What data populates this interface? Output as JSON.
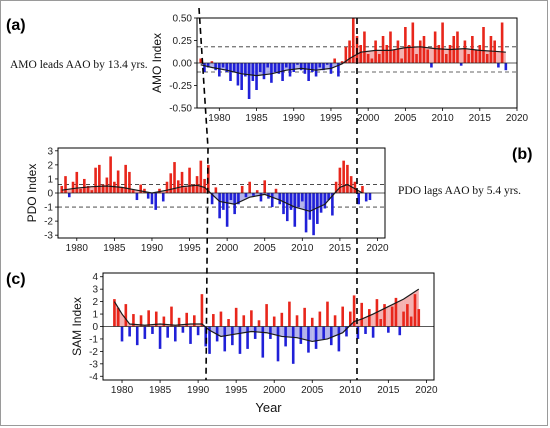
{
  "panels": {
    "a": "(a)",
    "b": "(b)",
    "c": "(c)"
  },
  "notes": {
    "amo_lead": "AMO leads AAO by 13.4 yrs.",
    "pdo_lag": "PDO lags AAO by 5.4 yrs."
  },
  "colors": {
    "positive": "#e8261b",
    "negative": "#2020d8",
    "positive_fill": "#f2a3a3",
    "negative_fill": "#a7a7e6",
    "smooth": "#1a1a1a"
  },
  "chart_data": [
    {
      "id": "amo",
      "type": "bar",
      "ylabel": "AMO Index",
      "xlabel": "",
      "xlim": [
        1977,
        2020
      ],
      "ylim": [
        -0.5,
        0.5
      ],
      "xticks": [
        1980,
        1985,
        1990,
        1995,
        2000,
        2005,
        2010,
        2015,
        2020
      ],
      "yticks": [
        -0.5,
        -0.25,
        0.0,
        0.25,
        0.5
      ],
      "ytick_labels": [
        "-0.50",
        "-0.25",
        "0.00",
        "0.25",
        "0.50"
      ],
      "thresholds": [
        0.18,
        -0.1
      ],
      "smoothed": {
        "x": [
          1977.5,
          1979,
          1981,
          1983,
          1985,
          1987,
          1989,
          1991,
          1993,
          1995,
          1996.5,
          1997.5,
          1999,
          2001,
          2003,
          2005,
          2007,
          2009,
          2011,
          2013,
          2015,
          2017,
          2018.5
        ],
        "y": [
          -0.02,
          -0.05,
          -0.08,
          -0.12,
          -0.14,
          -0.12,
          -0.08,
          -0.06,
          -0.08,
          -0.06,
          -0.01,
          0.05,
          0.12,
          0.14,
          0.14,
          0.17,
          0.18,
          0.16,
          0.15,
          0.16,
          0.14,
          0.13,
          0.12
        ]
      },
      "bars": {
        "x": [
          1977.5,
          1978,
          1978.5,
          1979,
          1979.5,
          1980,
          1980.5,
          1981,
          1981.5,
          1982,
          1982.5,
          1983,
          1983.5,
          1984,
          1984.5,
          1985,
          1985.5,
          1986,
          1986.5,
          1987,
          1987.5,
          1988,
          1988.5,
          1989,
          1989.5,
          1990,
          1990.5,
          1991,
          1991.5,
          1992,
          1992.5,
          1993,
          1993.5,
          1994,
          1994.5,
          1995,
          1995.5,
          1996,
          1996.5,
          1997,
          1997.5,
          1998,
          1998.5,
          1999,
          1999.5,
          2000,
          2000.5,
          2001,
          2001.5,
          2002,
          2002.5,
          2003,
          2003.5,
          2004,
          2004.5,
          2005,
          2005.5,
          2006,
          2006.5,
          2007,
          2007.5,
          2008,
          2008.5,
          2009,
          2009.5,
          2010,
          2010.5,
          2011,
          2011.5,
          2012,
          2012.5,
          2013,
          2013.5,
          2014,
          2014.5,
          2015,
          2015.5,
          2016,
          2016.5,
          2017,
          2017.5,
          2018,
          2018.5
        ],
        "y": [
          0.05,
          -0.1,
          -0.05,
          0.02,
          -0.08,
          -0.15,
          -0.05,
          -0.1,
          -0.2,
          -0.1,
          -0.25,
          -0.3,
          -0.15,
          -0.4,
          -0.2,
          -0.3,
          -0.1,
          -0.18,
          -0.05,
          -0.22,
          -0.1,
          -0.12,
          -0.2,
          -0.05,
          -0.15,
          -0.1,
          -0.02,
          -0.08,
          -0.12,
          -0.2,
          -0.1,
          -0.15,
          -0.05,
          -0.08,
          -0.02,
          -0.12,
          0.05,
          -0.15,
          0.02,
          0.18,
          0.25,
          0.5,
          0.3,
          0.2,
          0.35,
          0.1,
          0.05,
          0.25,
          0.1,
          0.3,
          0.2,
          0.35,
          0.15,
          0.25,
          0.05,
          0.4,
          0.2,
          0.45,
          0.1,
          0.25,
          0.3,
          0.15,
          -0.05,
          0.35,
          0.2,
          0.45,
          0.1,
          0.2,
          0.3,
          0.35,
          -0.03,
          0.25,
          0.1,
          0.3,
          0.15,
          0.2,
          0.4,
          0.1,
          0.3,
          0.25,
          -0.05,
          0.45,
          -0.08
        ]
      }
    },
    {
      "id": "pdo",
      "type": "bar",
      "ylabel": "PDO Index",
      "xlabel": "",
      "xlim": [
        1977.5,
        2021
      ],
      "ylim": [
        -3.2,
        3.2
      ],
      "xticks": [
        1980,
        1985,
        1990,
        1995,
        2000,
        2005,
        2010,
        2015,
        2020
      ],
      "yticks": [
        -3,
        -2,
        -1,
        0,
        1,
        2,
        3
      ],
      "ytick_labels": [
        "-3",
        "-2",
        "-1",
        "0",
        "1",
        "2",
        "3"
      ],
      "thresholds": [
        0.6,
        -1.0
      ],
      "smoothed": {
        "x": [
          1978,
          1980,
          1982,
          1984,
          1986,
          1988,
          1990,
          1992,
          1994,
          1996,
          1997,
          1998,
          1999,
          2001,
          2003,
          2005,
          2007,
          2009,
          2011,
          2013,
          2014,
          2015,
          2016,
          2017,
          2018
        ],
        "y": [
          0.2,
          0.35,
          0.45,
          0.5,
          0.4,
          0.2,
          0.0,
          0.2,
          0.45,
          0.55,
          0.4,
          -0.1,
          -0.6,
          -0.8,
          -0.3,
          -0.1,
          -0.5,
          -1.0,
          -1.3,
          -0.8,
          -0.2,
          0.4,
          0.6,
          0.3,
          0.0
        ]
      },
      "bars": {
        "x": [
          1978,
          1978.5,
          1979,
          1979.5,
          1980,
          1980.5,
          1981,
          1981.5,
          1982,
          1982.5,
          1983,
          1983.5,
          1984,
          1984.5,
          1985,
          1985.5,
          1986,
          1986.5,
          1987,
          1987.5,
          1988,
          1988.5,
          1989,
          1989.5,
          1990,
          1990.5,
          1991,
          1991.5,
          1992,
          1992.5,
          1993,
          1993.5,
          1994,
          1994.5,
          1995,
          1995.5,
          1996,
          1996.5,
          1997,
          1997.5,
          1998,
          1998.5,
          1999,
          1999.5,
          2000,
          2000.5,
          2001,
          2001.5,
          2002,
          2002.5,
          2003,
          2003.5,
          2004,
          2004.5,
          2005,
          2005.5,
          2006,
          2006.5,
          2007,
          2007.5,
          2008,
          2008.5,
          2009,
          2009.5,
          2010,
          2010.5,
          2011,
          2011.5,
          2012,
          2012.5,
          2013,
          2013.5,
          2014,
          2014.5,
          2015,
          2015.5,
          2016,
          2016.5,
          2017,
          2017.5,
          2018,
          2018.5,
          2019
        ],
        "y": [
          0.5,
          1.2,
          -0.3,
          0.8,
          1.5,
          0.3,
          1.0,
          0.5,
          0.2,
          1.8,
          2.0,
          0.6,
          1.1,
          2.6,
          0.8,
          1.6,
          0.4,
          2.0,
          1.5,
          0.2,
          -0.5,
          0.6,
          0.3,
          -0.4,
          -0.8,
          -1.2,
          0.3,
          -0.6,
          0.8,
          1.4,
          2.2,
          0.9,
          1.5,
          0.4,
          1.8,
          0.6,
          1.2,
          2.3,
          1.0,
          2.0,
          -0.8,
          0.4,
          -1.8,
          -1.2,
          -2.4,
          -0.5,
          -1.5,
          -0.8,
          0.5,
          -0.3,
          0.8,
          -0.2,
          0.2,
          -0.6,
          0.9,
          -0.4,
          -1.0,
          0.3,
          -0.8,
          -1.5,
          -2.0,
          -1.2,
          -2.4,
          -1.0,
          -0.6,
          -2.8,
          -1.9,
          -3.0,
          -2.2,
          -1.4,
          -1.1,
          -0.5,
          -1.6,
          0.8,
          1.8,
          2.3,
          2.0,
          1.2,
          0.8,
          -0.8,
          0.5,
          -0.6,
          -0.5
        ]
      }
    },
    {
      "id": "sam",
      "type": "bar",
      "ylabel": "SAM Index",
      "xlabel": "Year",
      "xlim": [
        1977.5,
        2021
      ],
      "ylim": [
        -4.3,
        4.3
      ],
      "xticks": [
        1980,
        1985,
        1990,
        1995,
        2000,
        2005,
        2010,
        2015,
        2020
      ],
      "yticks": [
        -4,
        -3,
        -2,
        -1,
        0,
        1,
        2,
        3,
        4
      ],
      "ytick_labels": [
        "-4",
        "-3",
        "-2",
        "-1",
        "0",
        "1",
        "2",
        "3",
        "4"
      ],
      "thresholds": [],
      "smoothed": {
        "x": [
          1979,
          1980,
          1981,
          1983,
          1985,
          1987,
          1989,
          1990.5,
          1991.5,
          1993,
          1995,
          1997,
          1999,
          2001,
          2003,
          2005,
          2007,
          2009,
          2010.5,
          2011.5,
          2013,
          2015,
          2017,
          2019
        ],
        "y": [
          2.0,
          1.0,
          0.2,
          0.1,
          0.2,
          0.1,
          0.2,
          0.2,
          -0.3,
          -0.8,
          -0.6,
          -0.4,
          -0.5,
          -0.8,
          -0.9,
          -1.2,
          -1.0,
          -0.5,
          0.4,
          0.6,
          1.0,
          1.6,
          2.2,
          3.0
        ]
      },
      "bars": {
        "x": [
          1979,
          1979.5,
          1980,
          1980.5,
          1981,
          1981.5,
          1982,
          1982.5,
          1983,
          1983.5,
          1984,
          1984.5,
          1985,
          1985.5,
          1986,
          1986.5,
          1987,
          1987.5,
          1988,
          1988.5,
          1989,
          1989.5,
          1990,
          1990.5,
          1991,
          1991.5,
          1992,
          1992.5,
          1993,
          1993.5,
          1994,
          1994.5,
          1995,
          1995.5,
          1996,
          1996.5,
          1997,
          1997.5,
          1998,
          1998.5,
          1999,
          1999.5,
          2000,
          2000.5,
          2001,
          2001.5,
          2002,
          2002.5,
          2003,
          2003.5,
          2004,
          2004.5,
          2005,
          2005.5,
          2006,
          2006.5,
          2007,
          2007.5,
          2008,
          2008.5,
          2009,
          2009.5,
          2010,
          2010.5,
          2011,
          2011.5,
          2012,
          2012.5,
          2013,
          2013.5,
          2014,
          2014.5,
          2015,
          2015.5,
          2016,
          2016.5,
          2017,
          2017.5,
          2018,
          2018.5,
          2019
        ],
        "y": [
          2.2,
          1.5,
          -1.2,
          1.8,
          -0.8,
          1.0,
          -1.5,
          0.9,
          -1.0,
          1.3,
          -0.6,
          1.2,
          -1.8,
          0.8,
          -0.9,
          1.6,
          -1.2,
          0.7,
          -0.5,
          1.1,
          -1.4,
          0.9,
          -0.7,
          2.6,
          -1.6,
          -2.2,
          1.0,
          -1.2,
          1.2,
          -2.0,
          0.6,
          -1.5,
          1.5,
          -2.2,
          0.9,
          -1.8,
          1.3,
          -1.0,
          0.5,
          -2.5,
          1.8,
          -1.0,
          0.8,
          -2.8,
          1.1,
          -1.6,
          2.0,
          -3.0,
          0.9,
          -1.4,
          1.5,
          -2.1,
          0.7,
          -1.8,
          1.2,
          -1.0,
          2.0,
          -1.5,
          0.9,
          -2.0,
          1.6,
          -0.8,
          1.2,
          2.5,
          -1.0,
          1.9,
          -0.6,
          1.4,
          -0.9,
          2.2,
          0.6,
          1.8,
          -0.5,
          1.6,
          2.3,
          -0.7,
          1.2,
          1.8,
          0.8,
          2.6,
          1.4
        ]
      }
    }
  ]
}
